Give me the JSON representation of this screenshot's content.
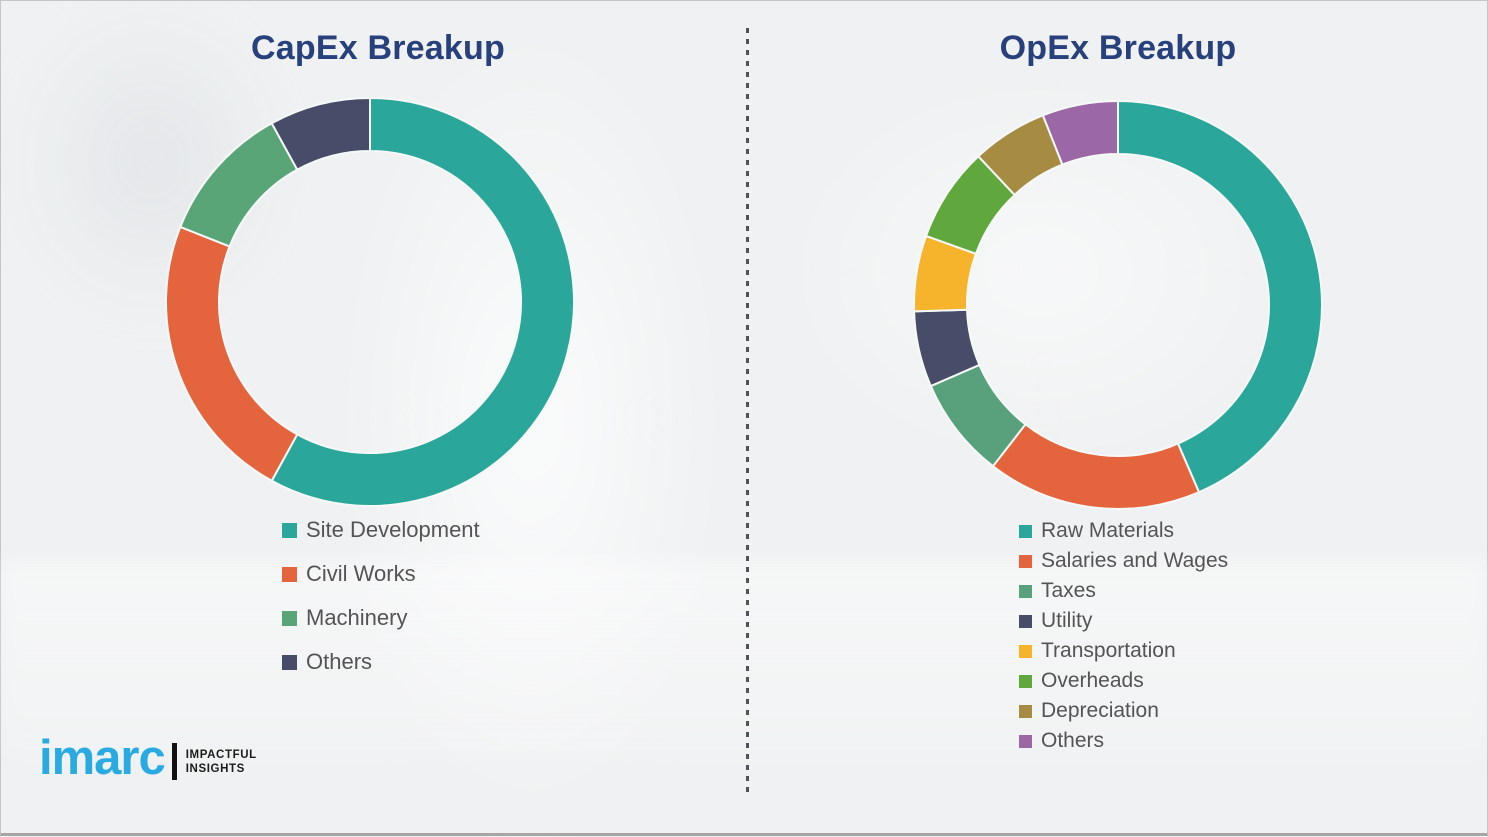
{
  "chart_data": [
    {
      "type": "pie",
      "subtype": "donut",
      "title": "CapEx Breakup",
      "categories": [
        "Site Development",
        "Civil Works",
        "Machinery",
        "Others"
      ],
      "values": [
        58,
        23,
        11,
        8
      ],
      "unit": "percent-estimated",
      "colors": [
        "#2aa79a",
        "#e4643e",
        "#5aa578",
        "#474c68"
      ],
      "legend_position": "below-left",
      "start_angle_deg": 0,
      "direction": "clockwise"
    },
    {
      "type": "pie",
      "subtype": "donut",
      "title": "OpEx Breakup",
      "categories": [
        "Raw Materials",
        "Salaries and Wages",
        "Taxes",
        "Utility",
        "Transportation",
        "Overheads",
        "Depreciation",
        "Others"
      ],
      "values": [
        43.5,
        17,
        8,
        6,
        6,
        7.5,
        6,
        6
      ],
      "unit": "percent-estimated",
      "colors": [
        "#2aa79a",
        "#e4643e",
        "#58a17c",
        "#474c68",
        "#f6b42c",
        "#60a83e",
        "#a68b43",
        "#9b67a4"
      ],
      "legend_position": "below-left",
      "start_angle_deg": 0,
      "direction": "clockwise"
    }
  ],
  "divider": {
    "style": "vertical-dashed",
    "color": "#4f5257"
  },
  "logo": {
    "brand": "imarc",
    "brand_color": "#29abe2",
    "tagline_line1": "IMPACTFUL",
    "tagline_line2": "INSIGHTS"
  }
}
